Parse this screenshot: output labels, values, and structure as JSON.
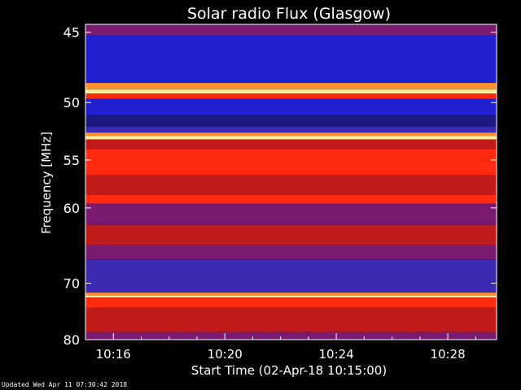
{
  "chart_data": {
    "type": "heatmap",
    "title": "Solar radio Flux (Glasgow)",
    "xlabel": "Start Time (02-Apr-18 10:15:00)",
    "ylabel": "Frequency [MHz]",
    "x_ticks": [
      "10:16",
      "10:20",
      "10:24",
      "10:28"
    ],
    "x_tick_minutes": [
      1,
      5,
      9,
      13
    ],
    "xlim_minutes": [
      0,
      14.75
    ],
    "y_ticks": [
      45,
      50,
      55,
      60,
      70,
      80
    ],
    "ylim": [
      44.5,
      80
    ],
    "y_scale": "reciprocal",
    "colormap": [
      "#1a1a80",
      "#2020d0",
      "#3c2ab0",
      "#7a1a70",
      "#c01a1a",
      "#ff2a10",
      "#ff9030",
      "#fff0a0"
    ],
    "bands": [
      {
        "fmin": 44.5,
        "fmax": 45.2,
        "level": 3
      },
      {
        "fmin": 45.2,
        "fmax": 48.5,
        "level": 1
      },
      {
        "fmin": 48.5,
        "fmax": 49.0,
        "level": 6
      },
      {
        "fmin": 49.0,
        "fmax": 49.3,
        "level": 7
      },
      {
        "fmin": 49.3,
        "fmax": 49.7,
        "level": 5
      },
      {
        "fmin": 49.7,
        "fmax": 51.0,
        "level": 1
      },
      {
        "fmin": 51.0,
        "fmax": 52.0,
        "level": 0
      },
      {
        "fmin": 52.0,
        "fmax": 52.5,
        "level": 2
      },
      {
        "fmin": 52.5,
        "fmax": 52.8,
        "level": 6
      },
      {
        "fmin": 52.8,
        "fmax": 53.1,
        "level": 7
      },
      {
        "fmin": 53.1,
        "fmax": 54.0,
        "level": 4
      },
      {
        "fmin": 54.0,
        "fmax": 56.5,
        "level": 5
      },
      {
        "fmin": 56.5,
        "fmax": 58.5,
        "level": 4
      },
      {
        "fmin": 58.5,
        "fmax": 59.5,
        "level": 5
      },
      {
        "fmin": 59.5,
        "fmax": 62.0,
        "level": 3
      },
      {
        "fmin": 62.0,
        "fmax": 64.5,
        "level": 4
      },
      {
        "fmin": 64.5,
        "fmax": 66.5,
        "level": 3
      },
      {
        "fmin": 66.5,
        "fmax": 71.5,
        "level": 2
      },
      {
        "fmin": 71.5,
        "fmax": 72.0,
        "level": 6
      },
      {
        "fmin": 72.0,
        "fmax": 72.3,
        "level": 7
      },
      {
        "fmin": 72.3,
        "fmax": 74.0,
        "level": 5
      },
      {
        "fmin": 74.0,
        "fmax": 78.5,
        "level": 4
      },
      {
        "fmin": 78.5,
        "fmax": 80.0,
        "level": 3
      }
    ]
  },
  "footer": {
    "updated": "Updated Wed Apr 11 07:30:42 2018"
  }
}
